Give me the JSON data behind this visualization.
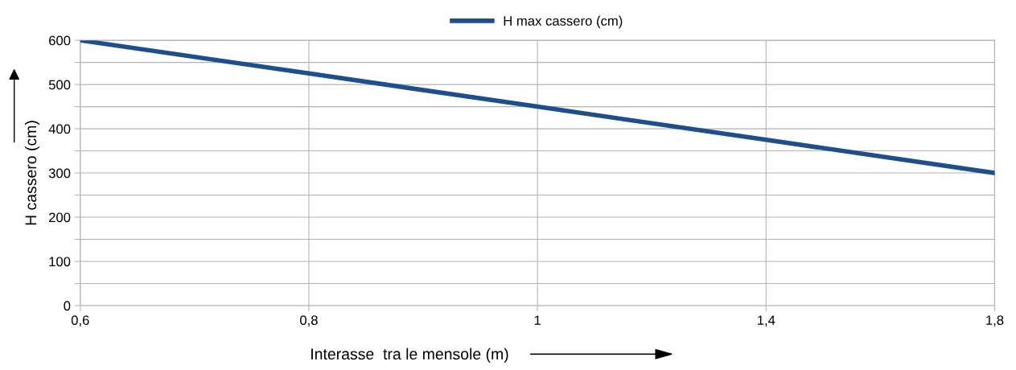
{
  "chart_data": {
    "type": "line",
    "xlabel": "Interasse  tra le mensole (m)",
    "ylabel": "H cassero (cm)",
    "categories": [
      "0,6",
      "0,8",
      "1",
      "1,4",
      "1,8"
    ],
    "series": [
      {
        "name": "H max cassero (cm)",
        "color": "#1f4e8c",
        "values": [
          600,
          525,
          450,
          375,
          300
        ]
      }
    ],
    "ylim": [
      0,
      600
    ],
    "yticks": [
      0,
      {
        "value": 50,
        "label": null
      },
      100,
      {
        "value": 150,
        "label": null
      },
      200,
      {
        "value": 250,
        "label": null
      },
      300,
      {
        "value": 350,
        "label": null
      },
      400,
      {
        "value": 450,
        "label": null
      },
      500,
      {
        "value": 550,
        "label": null
      },
      600
    ],
    "grid": true,
    "legend": "top",
    "marker": "none",
    "line_style": "solid"
  }
}
